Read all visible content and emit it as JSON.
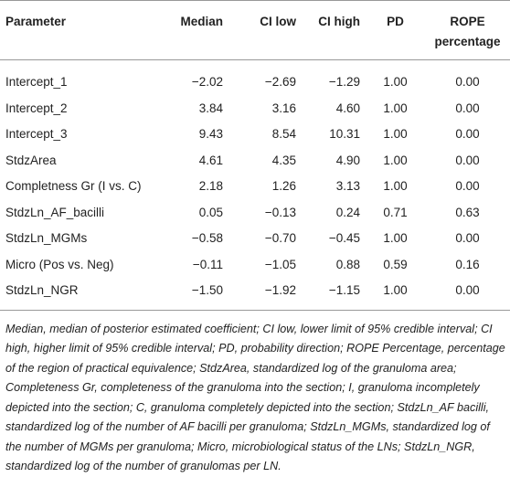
{
  "table": {
    "columns": [
      "Parameter",
      "Median",
      "CI low",
      "CI high",
      "PD",
      "ROPE percentage"
    ],
    "rows": [
      [
        "Intercept_1",
        "−2.02",
        "−2.69",
        "−1.29",
        "1.00",
        "0.00"
      ],
      [
        "Intercept_2",
        "3.84",
        "3.16",
        "4.60",
        "1.00",
        "0.00"
      ],
      [
        "Intercept_3",
        "9.43",
        "8.54",
        "10.31",
        "1.00",
        "0.00"
      ],
      [
        "StdzArea",
        "4.61",
        "4.35",
        "4.90",
        "1.00",
        "0.00"
      ],
      [
        "Completness Gr (I vs. C)",
        "2.18",
        "1.26",
        "3.13",
        "1.00",
        "0.00"
      ],
      [
        "StdzLn_AF_bacilli",
        "0.05",
        "−0.13",
        "0.24",
        "0.71",
        "0.63"
      ],
      [
        "StdzLn_MGMs",
        "−0.58",
        "−0.70",
        "−0.45",
        "1.00",
        "0.00"
      ],
      [
        "Micro (Pos vs. Neg)",
        "−0.11",
        "−1.05",
        "0.88",
        "0.59",
        "0.16"
      ],
      [
        "StdzLn_NGR",
        "−1.50",
        "−1.92",
        "−1.15",
        "1.00",
        "0.00"
      ]
    ],
    "footnote": "Median, median of posterior estimated coefficient; CI low, lower limit of 95% credible interval; CI high, higher limit of 95% credible interval; PD, probability direction; ROPE Percentage, percentage of the region of practical equivalence; StdzArea, standardized log of the granuloma area; Completeness Gr, completeness of the granuloma into the section; I, granuloma incompletely depicted into the section; C, granuloma completely depicted into the section; StdzLn_AF bacilli, standardized log of the number of AF bacilli per granuloma; StdzLn_MGMs, standardized log of the number of MGMs per granuloma; Micro, microbiological status of the LNs; StdzLn_NGR, standardized log of the number of granulomas per LN."
  }
}
